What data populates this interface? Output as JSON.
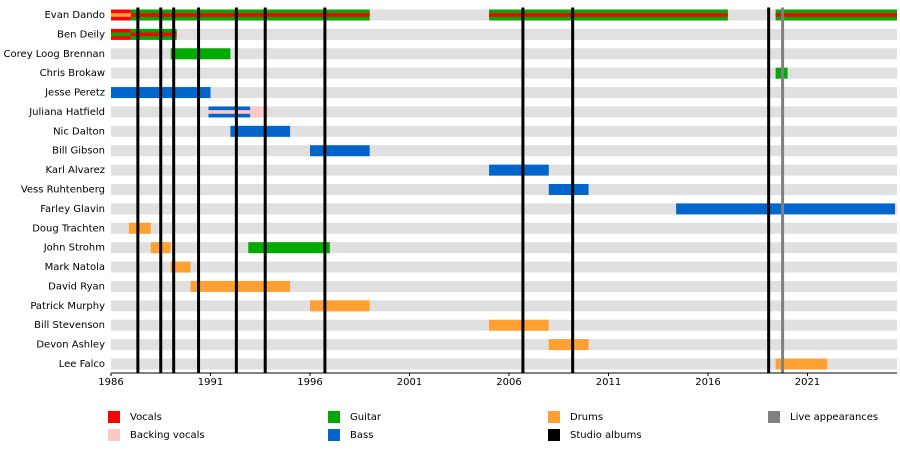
{
  "chart_data": {
    "type": "timeline",
    "xlim": [
      1986,
      2025.5
    ],
    "xticks": [
      1986,
      1991,
      1996,
      2001,
      2006,
      2011,
      2016,
      2021
    ],
    "legend": [
      {
        "name": "Vocals",
        "color": "#ff0000"
      },
      {
        "name": "Backing vocals",
        "color": "#ffc8c8"
      },
      {
        "name": "Guitar",
        "color": "#00aa00"
      },
      {
        "name": "Bass",
        "color": "#0066cc"
      },
      {
        "name": "Drums",
        "color": "#ffa033"
      },
      {
        "name": "Studio albums",
        "color": "#000000"
      },
      {
        "name": "Live appearances",
        "color": "#808080"
      }
    ],
    "members": [
      {
        "name": "Evan Dando",
        "periods": [
          {
            "start": 1986,
            "end": 1987,
            "roles": [
              0,
              4
            ]
          },
          {
            "start": 1987,
            "end": 1999,
            "roles": [
              2,
              0
            ]
          },
          {
            "start": 2005,
            "end": 2017,
            "roles": [
              2,
              0
            ]
          },
          {
            "start": 2019.4,
            "end": 2025.5,
            "roles": [
              2,
              0
            ]
          }
        ]
      },
      {
        "name": "Ben Deily",
        "periods": [
          {
            "start": 1986,
            "end": 1987,
            "roles": [
              0,
              2
            ]
          },
          {
            "start": 1987,
            "end": 1989.3,
            "roles": [
              2,
              0
            ]
          }
        ]
      },
      {
        "name": "Corey Loog Brennan",
        "periods": [
          {
            "start": 1989,
            "end": 1992,
            "roles": [
              2
            ]
          }
        ]
      },
      {
        "name": "Chris Brokaw",
        "periods": [
          {
            "start": 2019.4,
            "end": 2020,
            "roles": [
              2
            ]
          }
        ]
      },
      {
        "name": "Jesse Peretz",
        "periods": [
          {
            "start": 1986,
            "end": 1991,
            "roles": [
              3
            ]
          }
        ]
      },
      {
        "name": "Juliana Hatfield",
        "periods": [
          {
            "start": 1990.9,
            "end": 1993,
            "roles": [
              3,
              1
            ]
          },
          {
            "start": 1993,
            "end": 1993.9,
            "roles": [
              1
            ]
          }
        ]
      },
      {
        "name": "Nic Dalton",
        "periods": [
          {
            "start": 1992,
            "end": 1995,
            "roles": [
              3
            ]
          }
        ]
      },
      {
        "name": "Bill Gibson",
        "periods": [
          {
            "start": 1996,
            "end": 1999,
            "roles": [
              3
            ]
          }
        ]
      },
      {
        "name": "Karl Alvarez",
        "periods": [
          {
            "start": 2005,
            "end": 2008,
            "roles": [
              3
            ]
          }
        ]
      },
      {
        "name": "Vess Ruhtenberg",
        "periods": [
          {
            "start": 2008,
            "end": 2010,
            "roles": [
              3
            ]
          }
        ]
      },
      {
        "name": "Farley Glavin",
        "periods": [
          {
            "start": 2014.4,
            "end": 2025.4,
            "roles": [
              3
            ]
          }
        ]
      },
      {
        "name": "Doug Trachten",
        "periods": [
          {
            "start": 1986.9,
            "end": 1988,
            "roles": [
              4
            ]
          }
        ]
      },
      {
        "name": "John Strohm",
        "periods": [
          {
            "start": 1988,
            "end": 1989,
            "roles": [
              4
            ]
          },
          {
            "start": 1992.9,
            "end": 1997,
            "roles": [
              2
            ]
          }
        ]
      },
      {
        "name": "Mark Natola",
        "periods": [
          {
            "start": 1989,
            "end": 1990,
            "roles": [
              4
            ]
          }
        ]
      },
      {
        "name": "David Ryan",
        "periods": [
          {
            "start": 1990,
            "end": 1995,
            "roles": [
              4
            ]
          }
        ]
      },
      {
        "name": "Patrick Murphy",
        "periods": [
          {
            "start": 1996,
            "end": 1999,
            "roles": [
              4
            ]
          }
        ]
      },
      {
        "name": "Bill Stevenson",
        "periods": [
          {
            "start": 2005,
            "end": 2008,
            "roles": [
              4
            ]
          }
        ]
      },
      {
        "name": "Devon Ashley",
        "periods": [
          {
            "start": 2008,
            "end": 2010,
            "roles": [
              4
            ]
          }
        ]
      },
      {
        "name": "Lee Falco",
        "periods": [
          {
            "start": 2019.4,
            "end": 2022,
            "roles": [
              4
            ]
          }
        ]
      }
    ],
    "albums": [
      1987.35,
      1988.5,
      1989.15,
      1990.4,
      1992.3,
      1993.75,
      1996.75,
      2006.7,
      2009.2,
      2019.05
    ],
    "live": [
      2019.75
    ]
  }
}
